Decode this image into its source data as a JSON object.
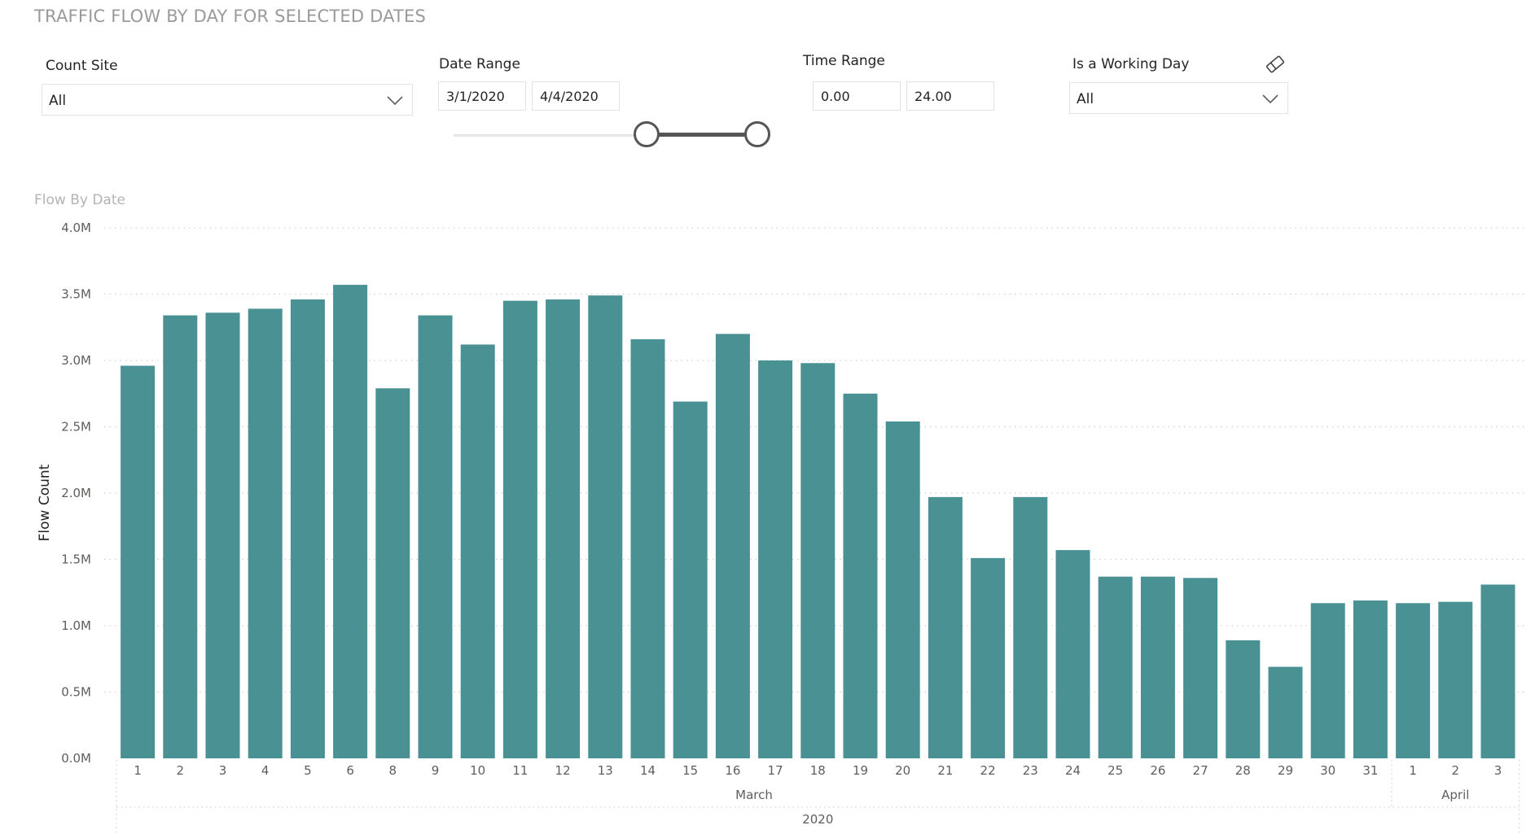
{
  "page": {
    "title": "TRAFFIC FLOW BY DAY FOR SELECTED DATES"
  },
  "slicers": {
    "count_site": {
      "label": "Count Site",
      "value": "All"
    },
    "date_range": {
      "label": "Date Range",
      "start": "3/1/2020",
      "end": "4/4/2020"
    },
    "time_range": {
      "label": "Time Range",
      "start": "0.00",
      "end": "24.00"
    },
    "working_day": {
      "label": "Is a Working Day",
      "value": "All"
    }
  },
  "icons": {
    "dropdown": "chevron-down-icon",
    "clear": "eraser-icon"
  },
  "colors": {
    "bar": "#4a9193",
    "gridline": "#cfcfcf",
    "handle": "#555555"
  },
  "chart_data": {
    "type": "bar",
    "title": "Flow By Date",
    "xlabel": "",
    "ylabel": "Flow Count",
    "ylim": [
      0,
      4000000
    ],
    "yticks": [
      "0.0M",
      "0.5M",
      "1.0M",
      "1.5M",
      "2.0M",
      "2.5M",
      "3.0M",
      "3.5M",
      "4.0M"
    ],
    "grid": true,
    "legend": "none",
    "categories": [
      "1",
      "2",
      "3",
      "4",
      "5",
      "6",
      "8",
      "9",
      "10",
      "11",
      "12",
      "13",
      "14",
      "15",
      "16",
      "17",
      "18",
      "19",
      "20",
      "21",
      "22",
      "23",
      "24",
      "25",
      "26",
      "27",
      "28",
      "29",
      "30",
      "31",
      "1",
      "2",
      "3"
    ],
    "values": [
      2960000,
      3340000,
      3360000,
      3390000,
      3460000,
      3570000,
      2790000,
      3340000,
      3120000,
      3450000,
      3460000,
      3490000,
      3160000,
      2690000,
      3200000,
      3000000,
      2980000,
      2750000,
      2540000,
      1970000,
      1510000,
      1970000,
      1570000,
      1370000,
      1370000,
      1360000,
      890000,
      690000,
      1170000,
      1190000,
      1170000,
      1180000,
      1310000
    ],
    "month_groups": [
      {
        "label": "March",
        "count": 30
      },
      {
        "label": "April",
        "count": 3
      }
    ],
    "year_groups": [
      {
        "label": "2020",
        "count": 33
      }
    ]
  }
}
